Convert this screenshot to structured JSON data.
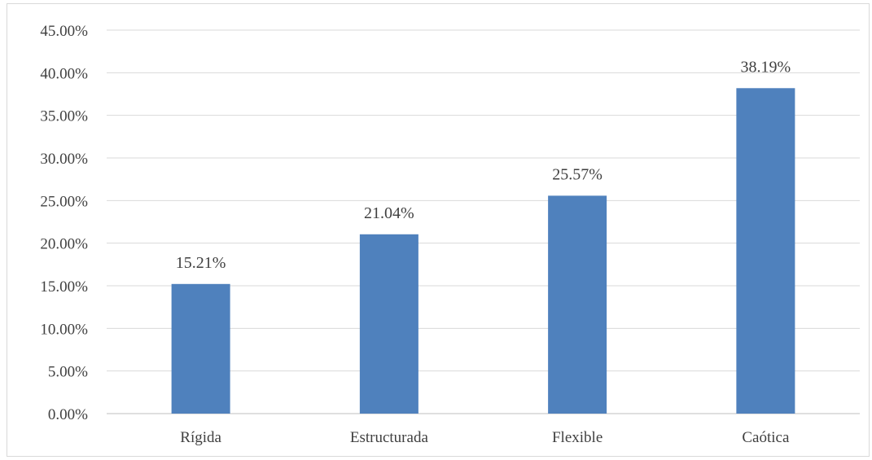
{
  "chart_data": {
    "type": "bar",
    "categories": [
      "Rígida",
      "Estructurada",
      "Flexible",
      "Caótica"
    ],
    "values": [
      15.21,
      21.04,
      25.57,
      38.19
    ],
    "data_labels": [
      "15.21%",
      "21.04%",
      "25.57%",
      "38.19%"
    ],
    "ylim": [
      0,
      45
    ],
    "yticks": [
      0,
      5,
      10,
      15,
      20,
      25,
      30,
      35,
      40,
      45
    ],
    "ytick_labels": [
      "0.00%",
      "5.00%",
      "10.00%",
      "15.00%",
      "20.00%",
      "25.00%",
      "30.00%",
      "35.00%",
      "40.00%",
      "45.00%"
    ],
    "grid": true,
    "legend": false,
    "bar_color": "#4f81bd",
    "grid_color": "#d9d9d9",
    "text_color": "#404040"
  }
}
